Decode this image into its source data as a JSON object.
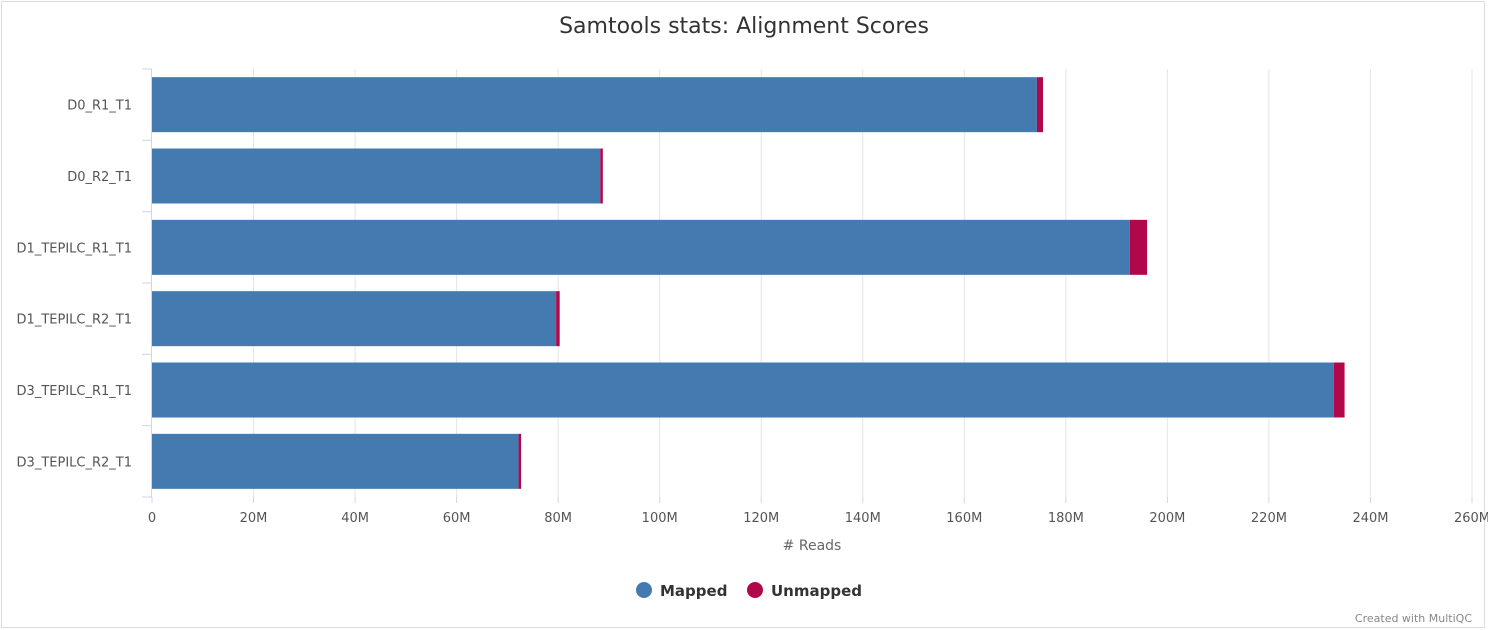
{
  "chart_data": {
    "type": "bar",
    "orientation": "horizontal",
    "stacked": true,
    "title": "Samtools stats: Alignment Scores",
    "xlabel": "# Reads",
    "ylabel": "",
    "xlim": [
      0,
      260000000
    ],
    "x_ticks": [
      0,
      20000000,
      40000000,
      60000000,
      80000000,
      100000000,
      120000000,
      140000000,
      160000000,
      180000000,
      200000000,
      220000000,
      240000000,
      260000000
    ],
    "x_tick_labels": [
      "0",
      "20M",
      "40M",
      "60M",
      "80M",
      "100M",
      "120M",
      "140M",
      "160M",
      "180M",
      "200M",
      "220M",
      "240M",
      "260M"
    ],
    "categories": [
      "D0_R1_T1",
      "D0_R2_T1",
      "D1_TEPILC_R1_T1",
      "D1_TEPILC_R2_T1",
      "D3_TEPILC_R1_T1",
      "D3_TEPILC_R2_T1"
    ],
    "series": [
      {
        "name": "Mapped",
        "color": "#437bb1",
        "values": [
          174300000,
          88300000,
          192600000,
          79600000,
          232800000,
          72200000
        ]
      },
      {
        "name": "Unmapped",
        "color": "#b1084c",
        "values": [
          1200000,
          500000,
          3400000,
          700000,
          2100000,
          500000
        ]
      }
    ],
    "grid": true,
    "legend_position": "bottom-center",
    "credits": "Created with MultiQC"
  }
}
